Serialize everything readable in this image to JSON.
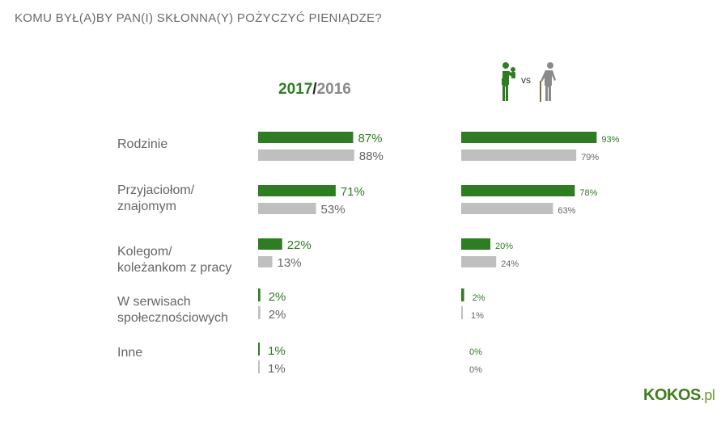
{
  "title": "KOMU BYŁ(A)BY PAN(I) SKŁONNA(Y) POŻYCZYĆ PIENIĄDZE?",
  "header": {
    "year_a": "2017",
    "separator": "/",
    "year_b": "2016",
    "vs_label": "vs"
  },
  "logo": {
    "main": "KOKOS",
    "suffix": ".pl"
  },
  "colors": {
    "green": "#2e7d23",
    "gray": "#bfbfbf",
    "label_green": "#2e7d23",
    "label_gray": "#666666"
  },
  "chart_data": [
    {
      "type": "bar",
      "orientation": "horizontal",
      "categories": [
        [
          "Rodzinie"
        ],
        [
          "Przyjaciołom/",
          "znajomym"
        ],
        [
          "Kolegom/",
          "koleżankom z pracy"
        ],
        [
          "W serwisach",
          "społecznościowych"
        ],
        [
          "Inne"
        ]
      ],
      "series": [
        {
          "name": "2017",
          "values": [
            87,
            71,
            22,
            2,
            1
          ],
          "labels": [
            "87%",
            "71%",
            "22%",
            "2%",
            "1%"
          ]
        },
        {
          "name": "2016",
          "values": [
            88,
            53,
            13,
            2,
            1
          ],
          "labels": [
            "88%",
            "53%",
            "13%",
            "2%",
            "1%"
          ]
        }
      ],
      "xlim": [
        0,
        100
      ]
    },
    {
      "type": "bar",
      "orientation": "horizontal",
      "categories": [
        [
          "Rodzinie"
        ],
        [
          "Przyjaciołom/",
          "znajomym"
        ],
        [
          "Kolegom/",
          "koleżankom z pracy"
        ],
        [
          "W serwisach",
          "społecznościowych"
        ],
        [
          "Inne"
        ]
      ],
      "series": [
        {
          "values": [
            93,
            78,
            20,
            2,
            0
          ],
          "labels": [
            "93%",
            "78%",
            "20%",
            "2%",
            "0%"
          ]
        },
        {
          "values": [
            79,
            63,
            24,
            1,
            0
          ],
          "labels": [
            "79%",
            "63%",
            "24%",
            "1%",
            "0%"
          ]
        }
      ],
      "xlim": [
        0,
        100
      ]
    }
  ]
}
